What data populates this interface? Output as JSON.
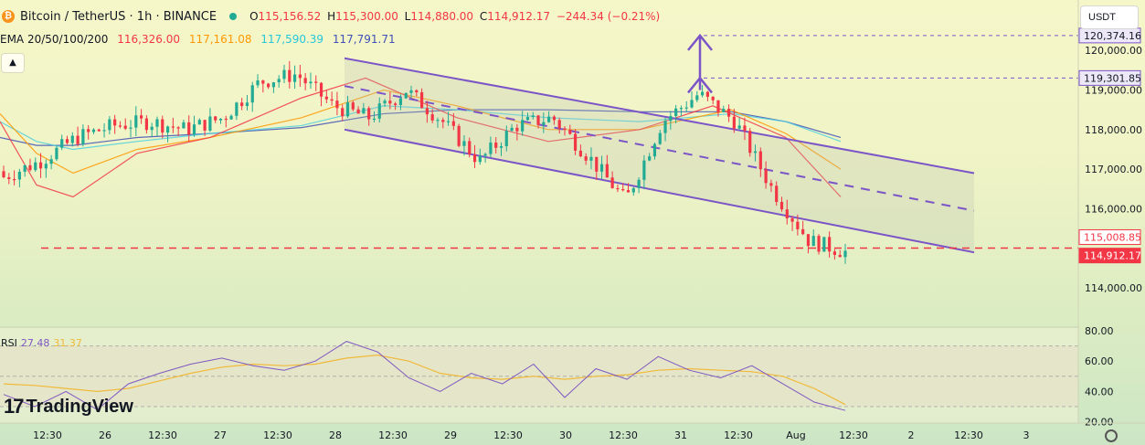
{
  "header": {
    "symbol": "Bitcoin / TetherUS · 1h · BINANCE",
    "open_label": "O",
    "open": "115,156.52",
    "high_label": "H",
    "high": "115,300.00",
    "low_label": "L",
    "low": "114,880.00",
    "close_label": "C",
    "close": "114,912.17",
    "change": "−244.34 (−0.21%)"
  },
  "ema_row": {
    "label": "EMA 20/50/100/200",
    "v20": "116,326.00",
    "v50": "117,161.08",
    "v100": "117,590.39",
    "v200": "117,791.71"
  },
  "toolbar": {
    "currency": "USDT",
    "collapse": "▲"
  },
  "rsi_panel": {
    "label": "RSI",
    "value": "27.48",
    "ma": "31.37"
  },
  "branding": {
    "name": "TradingView",
    "mark": "17"
  },
  "colors": {
    "up": "#22ab94",
    "down": "#f23645",
    "channel": "#7b55c7",
    "ema20": "#f23645",
    "ema50": "#ff9800",
    "ema100": "#4dd0e1",
    "ema200": "#3f51b5",
    "rsi": "#7e57c2",
    "rsi_ma": "#f0b93a"
  },
  "chart_data": [
    {
      "type": "candlestick",
      "title": "Bitcoin / TetherUS · 1h · BINANCE",
      "ylim": [
        113000,
        120700
      ],
      "y_ticks": [
        "120,000.00",
        "119,000.00",
        "118,000.00",
        "117,000.00",
        "116,000.00",
        "114,000.00"
      ],
      "x_ticks": [
        "12:30",
        "26",
        "12:30",
        "27",
        "12:30",
        "28",
        "12:30",
        "29",
        "12:30",
        "30",
        "12:30",
        "31",
        "12:30",
        "Aug",
        "12:30",
        "2",
        "12:30",
        "3"
      ],
      "price_labels": [
        {
          "value": "120,374.16",
          "style": "target"
        },
        {
          "value": "119,301.85",
          "style": "target"
        },
        {
          "value": "115,008.85",
          "style": "level"
        },
        {
          "value": "114,912.17",
          "style": "last"
        }
      ],
      "horizontal_levels": [
        120374.16,
        119301.85,
        115008.85
      ],
      "descending_channel": {
        "upper_line": [
          [
            28,
            119800
          ],
          [
            34,
            116900
          ]
        ],
        "mid_line": [
          [
            28,
            119100
          ],
          [
            34,
            115950
          ]
        ],
        "lower_line": [
          [
            28,
            118000
          ],
          [
            34,
            114900
          ]
        ]
      },
      "close_path": [
        116800,
        117200,
        117800,
        118100,
        118200,
        118000,
        118300,
        119200,
        119400,
        118600,
        118300,
        119000,
        118200,
        117200,
        118100,
        118300,
        117300,
        116200,
        118200,
        118900,
        118200,
        116500,
        115200,
        114912
      ]
    },
    {
      "type": "line",
      "title": "RSI",
      "ylim": [
        20,
        80
      ],
      "y_ticks": [
        "80.00",
        "60.00",
        "40.00",
        "20.00"
      ],
      "bands": [
        70,
        50,
        30
      ],
      "series": [
        {
          "name": "RSI",
          "values": [
            38,
            30,
            40,
            28,
            45,
            52,
            58,
            62,
            57,
            54,
            60,
            73,
            66,
            49,
            40,
            52,
            45,
            58,
            36,
            55,
            48,
            63,
            54,
            49,
            57,
            45,
            33,
            27.48
          ]
        },
        {
          "name": "MA",
          "values": [
            45,
            44,
            42,
            40,
            42,
            47,
            52,
            56,
            58,
            57,
            58,
            62,
            64,
            60,
            52,
            49,
            48,
            50,
            48,
            50,
            51,
            54,
            55,
            54,
            53,
            50,
            42,
            31.37
          ]
        }
      ]
    }
  ]
}
